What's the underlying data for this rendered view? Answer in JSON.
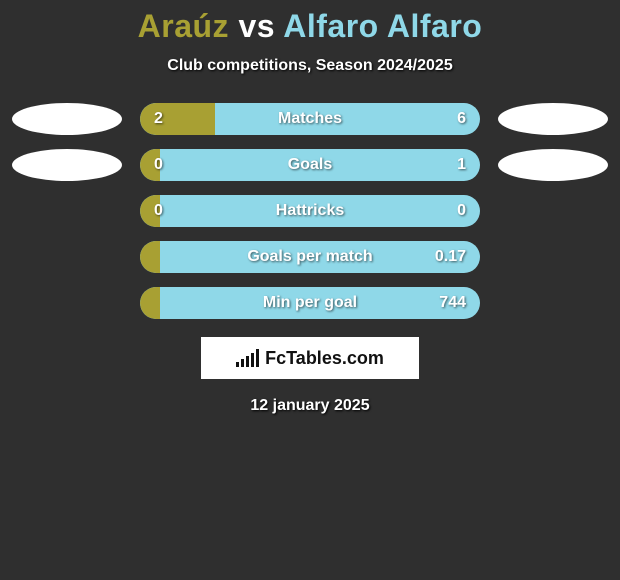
{
  "header": {
    "title_prefix": "Araúz",
    "title_mid": " vs ",
    "title_suffix": "Alfaro Alfaro",
    "title_prefix_color": "#a8a033",
    "title_mid_color": "#ffffff",
    "title_suffix_color": "#8fd8e8",
    "subtitle": "Club competitions, Season 2024/2025"
  },
  "colors": {
    "left": "#a8a033",
    "right": "#8fd8e8",
    "background": "#2f2f2f",
    "oval": "#ffffff"
  },
  "bars": [
    {
      "label": "Matches",
      "left_val": "2",
      "right_val": "6",
      "left_pct": 22,
      "show_ovals": true
    },
    {
      "label": "Goals",
      "left_val": "0",
      "right_val": "1",
      "left_pct": 6,
      "show_ovals": true
    },
    {
      "label": "Hattricks",
      "left_val": "0",
      "right_val": "0",
      "left_pct": 6,
      "show_ovals": false
    },
    {
      "label": "Goals per match",
      "left_val": "",
      "right_val": "0.17",
      "left_pct": 6,
      "show_ovals": false
    },
    {
      "label": "Min per goal",
      "left_val": "",
      "right_val": "744",
      "left_pct": 6,
      "show_ovals": false
    }
  ],
  "footer": {
    "logo_text": "FcTables.com",
    "date": "12 january 2025"
  }
}
